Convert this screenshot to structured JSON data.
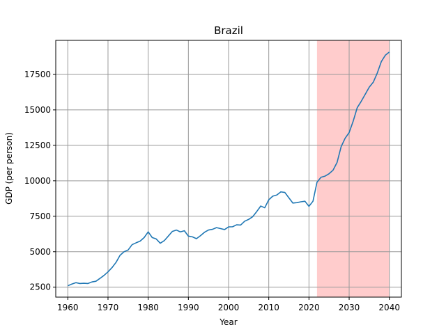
{
  "chart_data": {
    "type": "line",
    "title": "Brazil",
    "xlabel": "Year",
    "ylabel": "GDP (per person)",
    "xlim": [
      1957.0,
      2043.0
    ],
    "ylim": [
      1800,
      19900
    ],
    "xticks": [
      1960,
      1970,
      1980,
      1990,
      2000,
      2010,
      2020,
      2030,
      2040
    ],
    "yticks": [
      2500,
      5000,
      7500,
      10000,
      12500,
      15000,
      17500
    ],
    "grid": true,
    "highlight_range": {
      "start": 2022,
      "end": 2040,
      "color": "#ffcccc"
    },
    "series": [
      {
        "name": "",
        "color": "#1f77b4",
        "x": [
          1960,
          1961,
          1962,
          1963,
          1964,
          1965,
          1966,
          1967,
          1968,
          1969,
          1970,
          1971,
          1972,
          1973,
          1974,
          1975,
          1976,
          1977,
          1978,
          1979,
          1980,
          1981,
          1982,
          1983,
          1984,
          1985,
          1986,
          1987,
          1988,
          1989,
          1990,
          1991,
          1992,
          1993,
          1994,
          1995,
          1996,
          1997,
          1998,
          1999,
          2000,
          2001,
          2002,
          2003,
          2004,
          2005,
          2006,
          2007,
          2008,
          2009,
          2010,
          2011,
          2012,
          2013,
          2014,
          2015,
          2016,
          2017,
          2018,
          2019,
          2020,
          2021,
          2022,
          2023,
          2024,
          2025,
          2026,
          2027,
          2028,
          2029,
          2030,
          2031,
          2032,
          2033,
          2034,
          2035,
          2036,
          2037,
          2038,
          2039,
          2040
        ],
        "y": [
          2600,
          2720,
          2820,
          2760,
          2780,
          2760,
          2870,
          2920,
          3120,
          3330,
          3580,
          3880,
          4250,
          4750,
          5000,
          5120,
          5500,
          5630,
          5750,
          6000,
          6400,
          6000,
          5900,
          5600,
          5780,
          6100,
          6430,
          6530,
          6400,
          6480,
          6100,
          6050,
          5920,
          6130,
          6370,
          6530,
          6580,
          6700,
          6630,
          6560,
          6750,
          6760,
          6900,
          6880,
          7150,
          7280,
          7470,
          7830,
          8220,
          8100,
          8660,
          8920,
          9000,
          9220,
          9180,
          8800,
          8430,
          8460,
          8520,
          8560,
          8200,
          8560,
          9900,
          10250,
          10330,
          10500,
          10750,
          11300,
          12400,
          13000,
          13400,
          14200,
          15150,
          15600,
          16100,
          16600,
          16950,
          17600,
          18400,
          18850,
          19080
        ]
      }
    ]
  }
}
